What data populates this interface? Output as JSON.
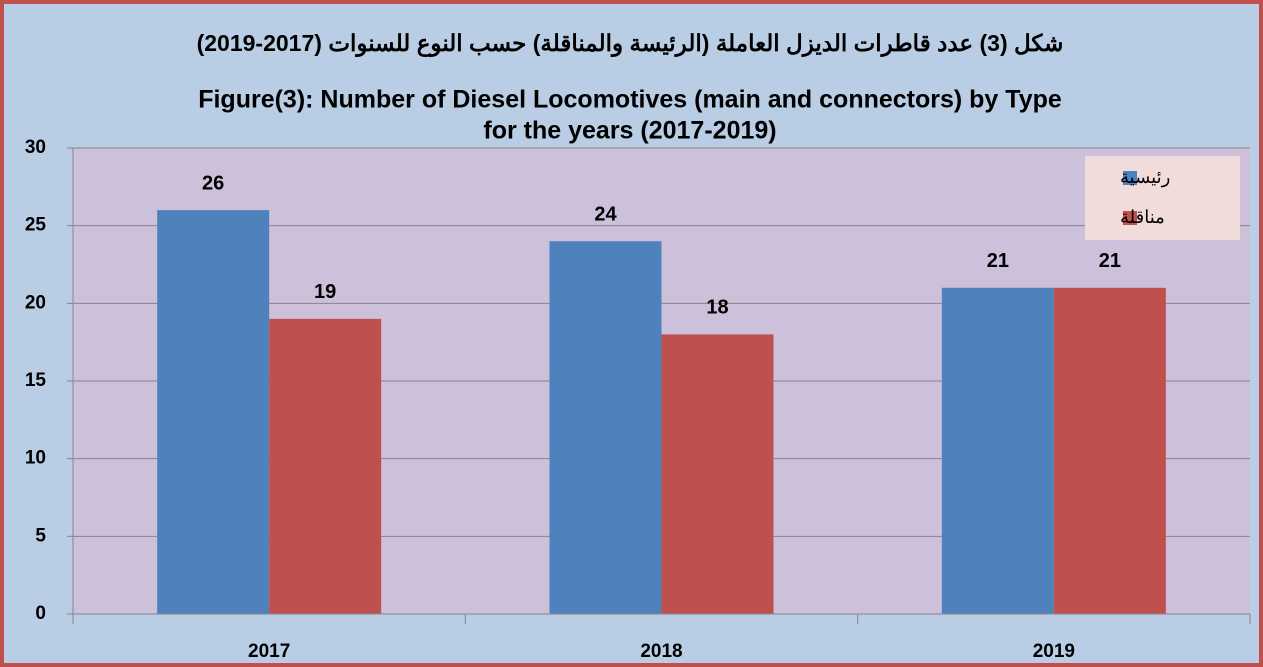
{
  "chart_data": {
    "type": "bar",
    "subtitle": "شكل (3) عدد قاطرات الديزل العاملة (الرئيسة والمناقلة) حسب النوع للسنوات (2017-2019)",
    "title": [
      "Figure(3): Number of Diesel Locomotives (main and connectors) by  Type",
      "for the years (2017-2019)"
    ],
    "categories": [
      "2017",
      "2018",
      "2019"
    ],
    "series": [
      {
        "name": "رئيسية",
        "color": "#4f81bd",
        "values": [
          26,
          24,
          21
        ]
      },
      {
        "name": "مناقلة",
        "color": "#c0504d",
        "values": [
          19,
          18,
          21
        ]
      }
    ],
    "ylim": [
      0,
      30
    ],
    "yticks": [
      0,
      5,
      10,
      15,
      20,
      25,
      30
    ],
    "grid": true,
    "legend": "upper right"
  }
}
